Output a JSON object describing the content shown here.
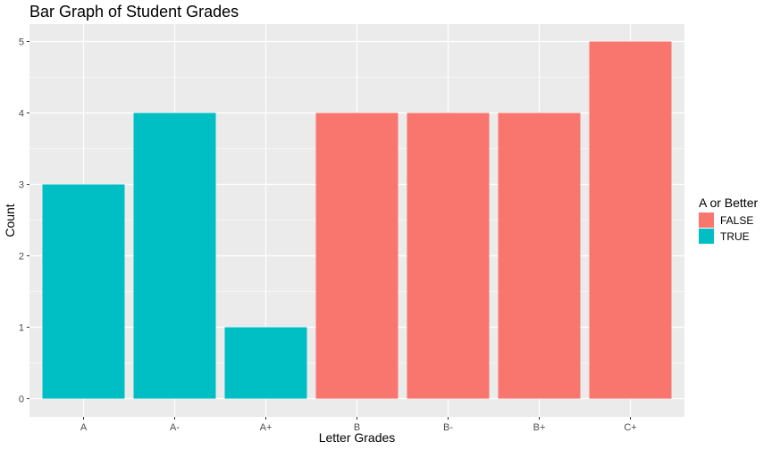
{
  "chart_data": {
    "type": "bar",
    "title": "Bar Graph of Student Grades",
    "xlabel": "Letter Grades",
    "ylabel": "Count",
    "categories": [
      "A",
      "A-",
      "A+",
      "B",
      "B-",
      "B+",
      "C+"
    ],
    "values": [
      3,
      4,
      1,
      4,
      4,
      4,
      5
    ],
    "group": [
      "TRUE",
      "TRUE",
      "TRUE",
      "FALSE",
      "FALSE",
      "FALSE",
      "FALSE"
    ],
    "ylim": [
      0,
      5.25
    ],
    "yticks": [
      0,
      1,
      2,
      3,
      4,
      5
    ],
    "grid": true,
    "legend": {
      "title": "A or Better",
      "placement": "right",
      "entries": [
        {
          "name": "FALSE",
          "color": "#F8766D"
        },
        {
          "name": "TRUE",
          "color": "#00BFC4"
        }
      ]
    },
    "panel_background": "#EBEBEB",
    "gridline_color": "#FFFFFF"
  }
}
